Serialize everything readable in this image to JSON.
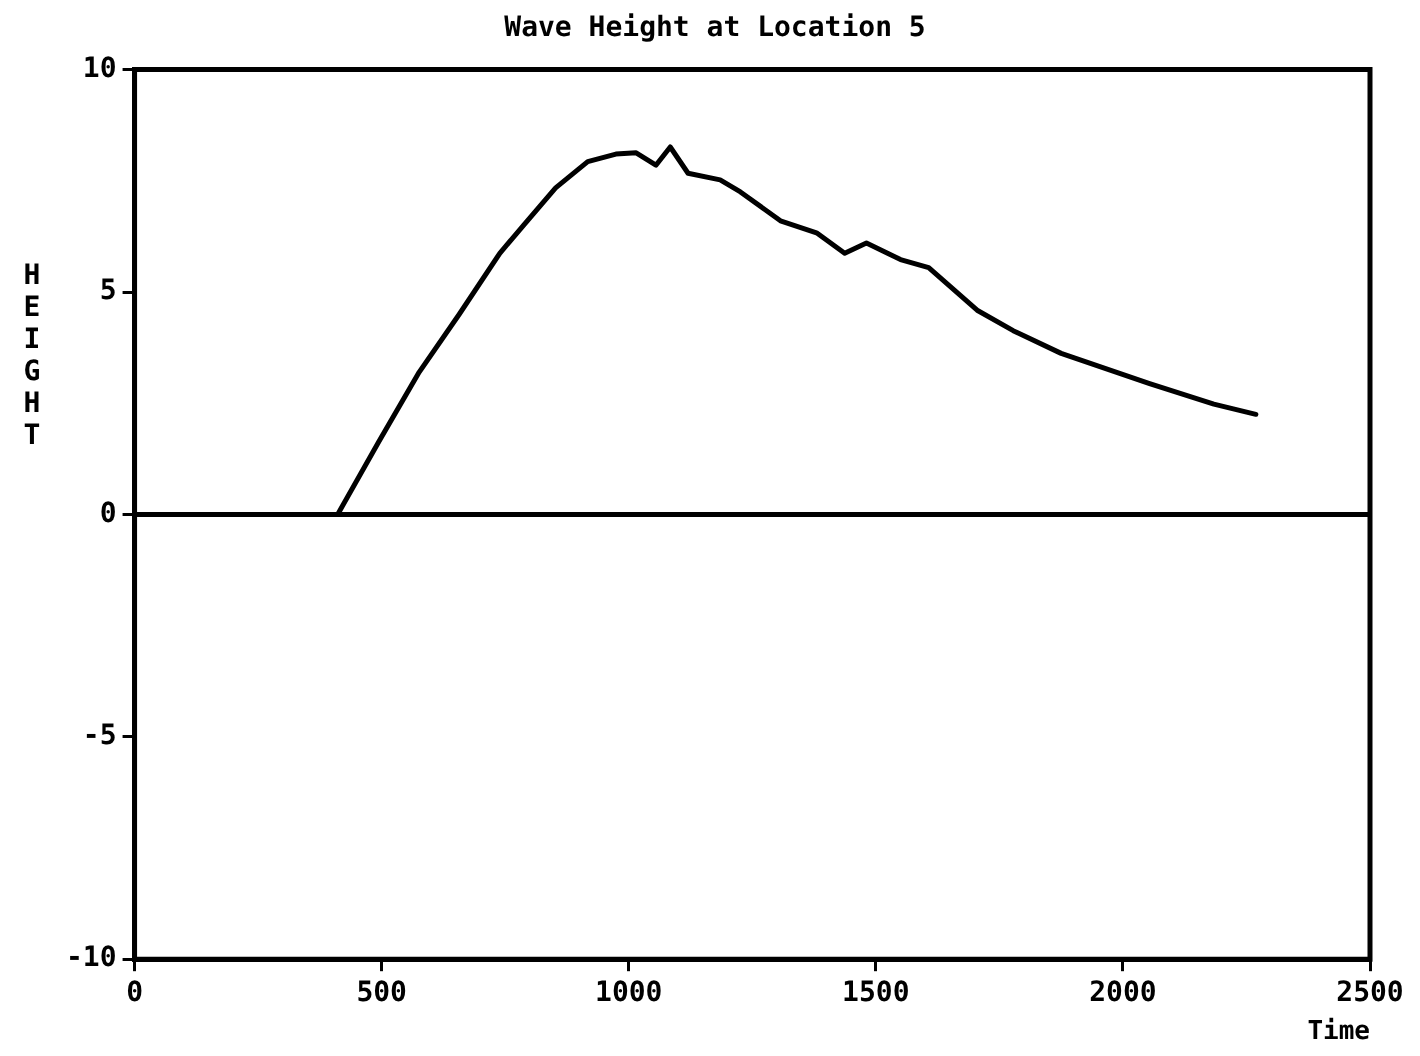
{
  "chart_data": {
    "type": "line",
    "title": "Wave Height at Location 5",
    "xlabel": "Time",
    "ylabel": "HEIGHT",
    "series": [
      {
        "color": "#000000",
        "x": [
          411,
          495,
          576,
          657,
          739,
          787,
          852,
          917,
          974,
          1015,
          1055,
          1084,
          1120,
          1185,
          1226,
          1307,
          1380,
          1437,
          1481,
          1550,
          1607,
          1705,
          1778,
          1875,
          2054,
          2184,
          2269
        ],
        "values": [
          0,
          1.65,
          3.2,
          4.5,
          5.87,
          6.5,
          7.34,
          7.93,
          8.1,
          8.13,
          7.85,
          8.26,
          7.67,
          7.52,
          7.25,
          6.6,
          6.33,
          5.87,
          6.1,
          5.73,
          5.55,
          4.59,
          4.13,
          3.62,
          2.94,
          2.48,
          2.25
        ]
      }
    ],
    "xlim": [
      0,
      2500
    ],
    "xticks": [
      0,
      500,
      1000,
      1500,
      2000,
      2500
    ],
    "ylim": [
      -10,
      10
    ],
    "yticks": [
      -10,
      -5,
      0,
      5,
      10
    ],
    "ref_lines": [
      {
        "axis": "y",
        "value": 0,
        "color": "#000000"
      }
    ],
    "grid": false,
    "legend": false,
    "marker": "none",
    "line_style": "solid"
  }
}
